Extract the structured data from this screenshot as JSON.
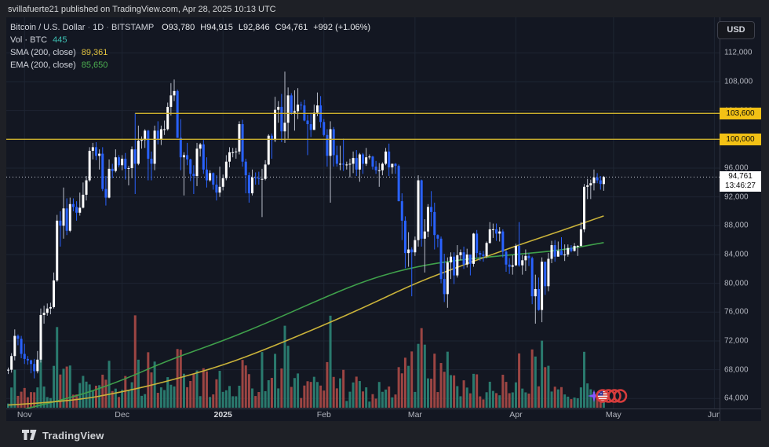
{
  "attribution": {
    "text": "svillafuerte21 published on TradingView.com, Apr 28, 2025 10:13 UTC"
  },
  "toolbar": {
    "currency_label": "USD"
  },
  "legend": {
    "symbol": "Bitcoin / U.S. Dollar",
    "separator": "·",
    "interval": "1D",
    "exchange": "BITSTAMP",
    "ohlc": {
      "o": "O93,780",
      "h": "H94,915",
      "l": "L92,846",
      "c": "C94,761",
      "change": "+992 (+1.06%)"
    },
    "vol_label": "Vol · BTC",
    "vol_value": "445",
    "sma_label": "SMA (200, close)",
    "sma_value": "89,361",
    "ema_label": "EMA (200, close)",
    "ema_value": "85,650"
  },
  "price_axis": {
    "tick_values": [
      112,
      108,
      104,
      100,
      96,
      92,
      88,
      84,
      80,
      76,
      72,
      68,
      64
    ],
    "ticks": [
      "112,000",
      "108,000",
      "104,000",
      "100,000",
      "96,000",
      "92,000",
      "88,000",
      "84,000",
      "80,000",
      "76,000",
      "72,000",
      "68,000",
      "64,000"
    ],
    "badges": [
      {
        "text": "103,600",
        "value": 103.6
      },
      {
        "text": "100,000",
        "value": 100.0
      }
    ],
    "last": {
      "price": "94,761",
      "countdown": "13:46:27",
      "value": 94.761
    }
  },
  "time_axis": {
    "labels": [
      {
        "text": "Nov",
        "index": 5,
        "bold": false
      },
      {
        "text": "Dec",
        "index": 35,
        "bold": false
      },
      {
        "text": "2025",
        "index": 66,
        "bold": true
      },
      {
        "text": "Feb",
        "index": 97,
        "bold": false
      },
      {
        "text": "Mar",
        "index": 125,
        "bold": false
      },
      {
        "text": "Apr",
        "index": 156,
        "bold": false
      },
      {
        "text": "May",
        "index": 186,
        "bold": false
      },
      {
        "text": "Jun",
        "index": 217,
        "bold": false
      }
    ]
  },
  "branding": {
    "wordmark": "TradingView"
  },
  "events": {
    "description": "upcoming US economic events",
    "flag_count": 4
  },
  "colors": {
    "pane_bg": "#131722",
    "frame_bg": "#1e2026",
    "grid": "#1e2532",
    "candle_up": "#ffffff",
    "candle_down": "#2962ff",
    "wick_up": "#b8bdc9",
    "wick_down": "#2962ff",
    "vol_up": "#2a7a6e",
    "vol_down": "#9c4543",
    "sma_line": "#c9b23a",
    "ema_line": "#3fa04b",
    "drawing_yellow": "#c9ae2d",
    "badge_yellow": "#f2c115",
    "last_line": "#c5c9d3",
    "axis_text": "#b2b5be",
    "event_ring": "#d63c3c",
    "sparkle": "#8358ff"
  },
  "chart_data": {
    "type": "candlestick",
    "title": "Bitcoin / U.S. Dollar, 1D, BITSTAMP",
    "unit": "thousands of USD",
    "start_date": "2024-10-27",
    "interval": "1D",
    "ylim": [
      62.6,
      116.9
    ],
    "grid": true,
    "last_ohlc": {
      "open": 93780,
      "high": 94915,
      "low": 92846,
      "close": 94761,
      "change": "+992 (+1.06%)"
    },
    "volume": {
      "current_btc": 445
    },
    "drawn_levels": {
      "ray_price": 103.6,
      "ray_from_index": 39,
      "hline_price": 100.0
    },
    "last_price_line": 94.761,
    "sma": {
      "period": 200,
      "source": "close",
      "current": 89.361,
      "points": [
        [
          0,
          63.1
        ],
        [
          19,
          63.6
        ],
        [
          35,
          64.9
        ],
        [
          49,
          66.4
        ],
        [
          66,
          68.6
        ],
        [
          80,
          71.0
        ],
        [
          97,
          74.2
        ],
        [
          111,
          77.0
        ],
        [
          125,
          80.0
        ],
        [
          139,
          82.4
        ],
        [
          156,
          85.2
        ],
        [
          170,
          87.3
        ],
        [
          183,
          89.361
        ]
      ]
    },
    "ema": {
      "period": 200,
      "source": "close",
      "current": 85.65,
      "points": [
        [
          0,
          62.0
        ],
        [
          19,
          64.0
        ],
        [
          35,
          66.5
        ],
        [
          49,
          69.3
        ],
        [
          66,
          72.0
        ],
        [
          80,
          74.6
        ],
        [
          97,
          78.0
        ],
        [
          111,
          80.6
        ],
        [
          125,
          82.3
        ],
        [
          139,
          83.3
        ],
        [
          156,
          84.0
        ],
        [
          170,
          84.6
        ],
        [
          183,
          85.65
        ]
      ]
    },
    "candles": [
      [
        67.9,
        68.3,
        67.4,
        68.0
      ],
      [
        68.0,
        70.3,
        67.6,
        69.9
      ],
      [
        69.9,
        73.6,
        69.3,
        72.7
      ],
      [
        72.7,
        72.9,
        71.4,
        72.3
      ],
      [
        72.3,
        72.7,
        69.6,
        70.2
      ],
      [
        70.2,
        71.6,
        68.8,
        69.5
      ],
      [
        69.5,
        69.9,
        68.7,
        69.3
      ],
      [
        69.3,
        69.4,
        67.5,
        68.8
      ],
      [
        68.8,
        69.5,
        66.8,
        67.8
      ],
      [
        67.8,
        70.6,
        67.5,
        69.4
      ],
      [
        69.4,
        76.5,
        69.0,
        75.6
      ],
      [
        75.6,
        76.9,
        74.4,
        75.9
      ],
      [
        75.9,
        77.2,
        75.5,
        76.5
      ],
      [
        76.5,
        77.3,
        75.7,
        76.7
      ],
      [
        76.7,
        81.5,
        76.5,
        80.4
      ],
      [
        80.4,
        89.5,
        80.2,
        88.7
      ],
      [
        88.7,
        90.0,
        85.1,
        88.0
      ],
      [
        88.0,
        93.3,
        86.2,
        90.4
      ],
      [
        90.4,
        91.8,
        86.7,
        87.3
      ],
      [
        87.3,
        91.9,
        87.1,
        91.0
      ],
      [
        91.0,
        91.8,
        90.0,
        90.6
      ],
      [
        90.6,
        91.4,
        88.7,
        89.8
      ],
      [
        89.8,
        92.6,
        89.4,
        90.5
      ],
      [
        90.5,
        94.0,
        90.4,
        92.3
      ],
      [
        92.3,
        94.9,
        91.5,
        94.3
      ],
      [
        94.3,
        98.9,
        94.1,
        98.4
      ],
      [
        98.4,
        99.5,
        97.2,
        98.9
      ],
      [
        98.9,
        99.6,
        97.1,
        97.7
      ],
      [
        97.7,
        98.6,
        95.8,
        98.0
      ],
      [
        98.0,
        98.9,
        92.8,
        93.1
      ],
      [
        93.1,
        94.9,
        90.8,
        91.9
      ],
      [
        91.9,
        97.2,
        91.8,
        95.9
      ],
      [
        95.9,
        96.6,
        94.6,
        95.6
      ],
      [
        95.6,
        98.6,
        95.4,
        97.5
      ],
      [
        97.5,
        97.8,
        96.1,
        96.4
      ],
      [
        96.4,
        97.8,
        95.7,
        97.3
      ],
      [
        97.3,
        98.1,
        94.4,
        95.9
      ],
      [
        95.9,
        96.3,
        93.6,
        96.0
      ],
      [
        96.0,
        99.0,
        94.6,
        98.6
      ],
      [
        98.6,
        103.6,
        92.4,
        96.6
      ],
      [
        96.6,
        101.9,
        96.4,
        99.8
      ],
      [
        99.8,
        100.4,
        98.7,
        99.9
      ],
      [
        99.9,
        101.4,
        98.8,
        101.2
      ],
      [
        101.2,
        101.3,
        94.3,
        97.3
      ],
      [
        97.3,
        98.3,
        94.3,
        96.6
      ],
      [
        96.6,
        101.9,
        95.7,
        101.2
      ],
      [
        101.2,
        102.5,
        99.3,
        100.0
      ],
      [
        100.0,
        101.9,
        99.2,
        101.4
      ],
      [
        101.4,
        102.6,
        100.6,
        101.4
      ],
      [
        101.4,
        105.1,
        101.2,
        104.5
      ],
      [
        104.5,
        107.8,
        103.3,
        106.1
      ],
      [
        106.1,
        108.3,
        105.3,
        106.7
      ],
      [
        106.7,
        106.9,
        100.2,
        100.2
      ],
      [
        100.2,
        102.8,
        95.7,
        97.5
      ],
      [
        97.5,
        98.2,
        92.2,
        97.8
      ],
      [
        97.8,
        99.5,
        96.4,
        97.2
      ],
      [
        97.2,
        97.3,
        94.2,
        95.2
      ],
      [
        95.2,
        96.4,
        92.4,
        94.9
      ],
      [
        94.9,
        99.5,
        93.5,
        98.7
      ],
      [
        98.7,
        99.5,
        97.6,
        99.3
      ],
      [
        99.3,
        99.9,
        95.2,
        95.8
      ],
      [
        95.8,
        97.5,
        93.3,
        94.3
      ],
      [
        94.3,
        95.7,
        94.1,
        95.3
      ],
      [
        95.3,
        95.4,
        93.0,
        93.7
      ],
      [
        93.7,
        95.0,
        91.5,
        92.6
      ],
      [
        92.6,
        96.2,
        92.0,
        93.4
      ],
      [
        93.4,
        95.1,
        92.9,
        94.6
      ],
      [
        94.6,
        97.8,
        94.3,
        96.9
      ],
      [
        96.9,
        98.9,
        96.1,
        98.2
      ],
      [
        98.2,
        98.8,
        97.5,
        98.2
      ],
      [
        98.2,
        98.8,
        97.3,
        98.3
      ],
      [
        98.3,
        102.5,
        97.9,
        102.1
      ],
      [
        102.1,
        102.7,
        96.2,
        96.9
      ],
      [
        96.9,
        97.3,
        92.5,
        95.0
      ],
      [
        95.0,
        95.4,
        91.2,
        92.5
      ],
      [
        92.5,
        95.8,
        92.2,
        94.7
      ],
      [
        94.7,
        95.4,
        93.7,
        94.6
      ],
      [
        94.6,
        95.5,
        93.7,
        94.5
      ],
      [
        94.5,
        95.9,
        89.2,
        94.5
      ],
      [
        94.5,
        97.1,
        94.3,
        96.5
      ],
      [
        96.5,
        100.7,
        96.4,
        100.5
      ],
      [
        100.5,
        100.8,
        97.3,
        99.9
      ],
      [
        99.9,
        105.9,
        99.6,
        104.1
      ],
      [
        104.1,
        105.3,
        102.3,
        104.5
      ],
      [
        104.5,
        106.3,
        99.6,
        101.1
      ],
      [
        101.1,
        109.4,
        99.5,
        102.3
      ],
      [
        102.3,
        107.2,
        100.1,
        106.1
      ],
      [
        106.1,
        106.4,
        103.4,
        103.7
      ],
      [
        103.7,
        106.8,
        101.2,
        103.9
      ],
      [
        103.9,
        107.1,
        102.8,
        104.8
      ],
      [
        104.8,
        105.2,
        104.1,
        104.7
      ],
      [
        104.7,
        105.5,
        102.5,
        102.6
      ],
      [
        102.6,
        103.4,
        97.8,
        102.1
      ],
      [
        102.1,
        103.7,
        100.3,
        101.3
      ],
      [
        101.3,
        104.8,
        101.3,
        103.7
      ],
      [
        103.7,
        106.5,
        103.2,
        104.7
      ],
      [
        104.7,
        106.0,
        101.6,
        102.4
      ],
      [
        102.4,
        102.8,
        100.4,
        100.6
      ],
      [
        100.6,
        101.4,
        96.2,
        97.7
      ],
      [
        97.7,
        102.5,
        91.2,
        101.4
      ],
      [
        101.4,
        101.7,
        96.2,
        97.8
      ],
      [
        97.8,
        99.1,
        96.2,
        96.6
      ],
      [
        96.6,
        99.1,
        95.7,
        96.6
      ],
      [
        96.6,
        100.1,
        95.6,
        96.5
      ],
      [
        96.5,
        96.9,
        95.8,
        96.5
      ],
      [
        96.5,
        97.3,
        94.7,
        96.6
      ],
      [
        96.6,
        98.3,
        95.3,
        97.4
      ],
      [
        97.4,
        98.5,
        94.9,
        95.8
      ],
      [
        95.8,
        98.1,
        94.1,
        97.9
      ],
      [
        97.9,
        98.1,
        95.2,
        96.6
      ],
      [
        96.6,
        98.8,
        96.3,
        97.5
      ],
      [
        97.5,
        97.9,
        97.2,
        97.6
      ],
      [
        97.6,
        97.7,
        95.8,
        96.2
      ],
      [
        96.2,
        97.0,
        95.2,
        95.7
      ],
      [
        95.7,
        96.7,
        93.4,
        95.7
      ],
      [
        95.7,
        96.8,
        95.0,
        96.6
      ],
      [
        96.6,
        98.8,
        96.4,
        98.3
      ],
      [
        98.3,
        99.4,
        94.9,
        96.1
      ],
      [
        96.1,
        96.6,
        95.2,
        96.6
      ],
      [
        96.6,
        96.7,
        95.2,
        96.3
      ],
      [
        96.3,
        96.5,
        91.4,
        91.4
      ],
      [
        91.4,
        92.5,
        86.0,
        88.7
      ],
      [
        88.7,
        89.3,
        82.1,
        84.2
      ],
      [
        84.2,
        87.1,
        82.3,
        84.7
      ],
      [
        84.7,
        85.0,
        78.2,
        84.3
      ],
      [
        84.3,
        86.5,
        83.8,
        86.0
      ],
      [
        86.0,
        95.0,
        85.1,
        94.3
      ],
      [
        94.3,
        94.4,
        85.1,
        86.2
      ],
      [
        86.2,
        88.9,
        81.5,
        87.2
      ],
      [
        87.2,
        91.0,
        86.4,
        90.6
      ],
      [
        90.6,
        92.8,
        87.9,
        89.9
      ],
      [
        89.9,
        91.2,
        84.7,
        86.7
      ],
      [
        86.7,
        86.8,
        85.0,
        86.2
      ],
      [
        86.2,
        86.5,
        80.0,
        80.6
      ],
      [
        80.6,
        84.1,
        77.4,
        78.5
      ],
      [
        78.5,
        83.6,
        76.6,
        82.9
      ],
      [
        82.9,
        84.3,
        80.6,
        83.7
      ],
      [
        83.7,
        84.3,
        79.9,
        81.1
      ],
      [
        81.1,
        85.3,
        80.8,
        83.9
      ],
      [
        83.9,
        84.7,
        83.2,
        84.3
      ],
      [
        84.3,
        85.1,
        82.0,
        82.6
      ],
      [
        82.6,
        84.8,
        82.2,
        84.0
      ],
      [
        84.0,
        84.0,
        81.1,
        82.7
      ],
      [
        82.7,
        87.0,
        82.3,
        86.9
      ],
      [
        86.9,
        87.4,
        83.6,
        84.2
      ],
      [
        84.2,
        84.5,
        83.1,
        84.0
      ],
      [
        84.0,
        84.5,
        83.0,
        83.8
      ],
      [
        83.8,
        85.8,
        83.5,
        85.6
      ],
      [
        85.6,
        88.5,
        85.5,
        87.5
      ],
      [
        87.5,
        88.3,
        86.3,
        87.5
      ],
      [
        87.5,
        88.3,
        85.9,
        86.9
      ],
      [
        86.9,
        87.8,
        85.8,
        87.2
      ],
      [
        87.2,
        87.5,
        83.6,
        84.4
      ],
      [
        84.4,
        84.6,
        81.6,
        82.6
      ],
      [
        82.6,
        83.5,
        81.3,
        82.3
      ],
      [
        82.3,
        83.9,
        81.2,
        82.5
      ],
      [
        82.5,
        85.5,
        82.4,
        85.2
      ],
      [
        85.2,
        88.5,
        82.3,
        82.5
      ],
      [
        82.5,
        83.9,
        81.2,
        83.2
      ],
      [
        83.2,
        84.7,
        81.7,
        83.8
      ],
      [
        83.8,
        84.2,
        82.4,
        83.5
      ],
      [
        83.5,
        83.7,
        77.1,
        78.2
      ],
      [
        78.2,
        81.2,
        74.4,
        79.2
      ],
      [
        79.2,
        80.8,
        76.2,
        76.3
      ],
      [
        76.3,
        83.6,
        74.6,
        83.0
      ],
      [
        83.0,
        83.0,
        78.4,
        79.6
      ],
      [
        79.6,
        84.2,
        78.9,
        83.4
      ],
      [
        83.4,
        85.9,
        82.8,
        85.3
      ],
      [
        85.3,
        86.0,
        83.0,
        83.7
      ],
      [
        83.7,
        85.8,
        83.7,
        84.5
      ],
      [
        84.5,
        86.4,
        83.9,
        83.9
      ],
      [
        83.9,
        85.4,
        83.1,
        84.0
      ],
      [
        84.0,
        85.4,
        83.7,
        84.9
      ],
      [
        84.9,
        85.3,
        84.3,
        84.5
      ],
      [
        84.5,
        85.6,
        84.4,
        85.2
      ],
      [
        85.2,
        85.3,
        83.8,
        85.2
      ],
      [
        85.2,
        88.5,
        85.1,
        87.5
      ],
      [
        87.5,
        93.8,
        87.1,
        93.4
      ],
      [
        93.4,
        94.5,
        91.7,
        93.6
      ],
      [
        93.6,
        94.4,
        91.7,
        93.9
      ],
      [
        93.9,
        95.8,
        92.9,
        94.7
      ],
      [
        94.7,
        95.3,
        93.9,
        94.3
      ],
      [
        94.3,
        94.9,
        93.0,
        93.8
      ],
      [
        93.78,
        94.915,
        92.846,
        94.761
      ]
    ]
  }
}
